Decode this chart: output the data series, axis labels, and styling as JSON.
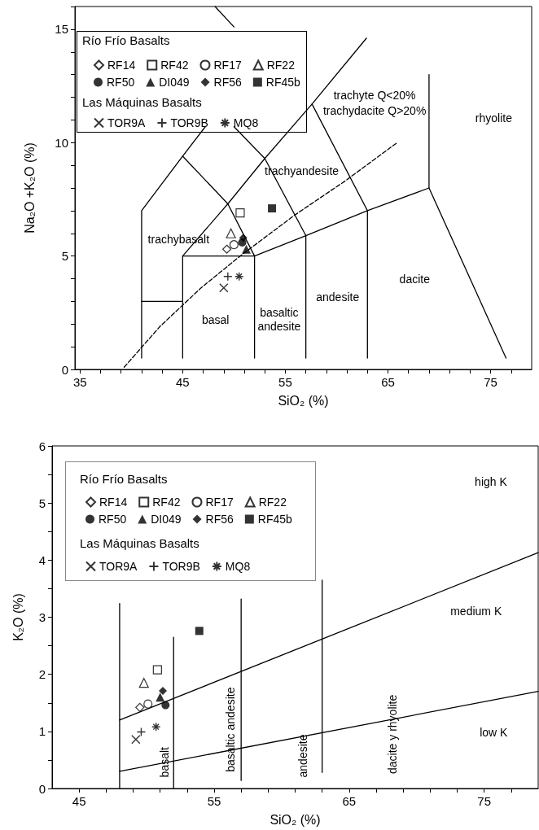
{
  "chart_data": [
    {
      "type": "scatter",
      "xlabel": "SiO₂ (%)",
      "ylabel": "Na₂O +K₂O (%)",
      "xlim": [
        34.5,
        79
      ],
      "ylim": [
        0,
        16
      ],
      "xticks": [
        35,
        {
          "value": 37,
          "label": null
        },
        {
          "value": 39,
          "label": null
        },
        {
          "value": 41,
          "label": null
        },
        {
          "value": 43,
          "label": null
        },
        45,
        {
          "value": 47,
          "label": null
        },
        {
          "value": 49,
          "label": null
        },
        {
          "value": 51,
          "label": null
        },
        {
          "value": 53,
          "label": null
        },
        55,
        {
          "value": 57,
          "label": null
        },
        {
          "value": 59,
          "label": null
        },
        {
          "value": 61,
          "label": null
        },
        {
          "value": 63,
          "label": null
        },
        65,
        {
          "value": 67,
          "label": null
        },
        {
          "value": 69,
          "label": null
        },
        {
          "value": 71,
          "label": null
        },
        {
          "value": 73,
          "label": null
        },
        75,
        {
          "value": 77,
          "label": null
        }
      ],
      "yticks": [
        0,
        {
          "value": 1,
          "label": null
        },
        {
          "value": 2,
          "label": null
        },
        {
          "value": 3,
          "label": null
        },
        {
          "value": 4,
          "label": null
        },
        5,
        {
          "value": 6,
          "label": null
        },
        {
          "value": 7,
          "label": null
        },
        {
          "value": 8,
          "label": null
        },
        {
          "value": 9,
          "label": null
        },
        10,
        {
          "value": 11,
          "label": null
        },
        {
          "value": 12,
          "label": null
        },
        {
          "value": 13,
          "label": null
        },
        {
          "value": 14,
          "label": null
        },
        15,
        {
          "value": 16,
          "label": null
        }
      ],
      "grid": false,
      "legend": "top left",
      "legend_title": [
        "Río Frío Basalts",
        "Las Máquinas Basalts"
      ],
      "series": [
        {
          "type": "line",
          "color": "#000000",
          "marker": "none",
          "x": [
            41,
            41,
            45,
            47.2
          ],
          "values": [
            0.5,
            7,
            9.4,
            10.7
          ]
        },
        {
          "type": "line",
          "color": "#000000",
          "marker": "none",
          "x": [
            41,
            45
          ],
          "values": [
            3,
            3
          ]
        },
        {
          "type": "line",
          "color": "#000000",
          "marker": "none",
          "x": [
            45,
            45,
            52,
            52
          ],
          "values": [
            0.5,
            5,
            5,
            0.5
          ]
        },
        {
          "type": "line",
          "color": "#000000",
          "marker": "none",
          "x": [
            45,
            49.4,
            52,
            57,
            63,
            69,
            76.5
          ],
          "values": [
            5,
            7.3,
            5,
            5.9,
            7,
            8,
            0.5
          ]
        },
        {
          "type": "line",
          "color": "#000000",
          "marker": "none",
          "x": [
            45,
            49.4,
            53,
            57,
            57
          ],
          "values": [
            9.4,
            7.3,
            9.3,
            5.9,
            0.5
          ]
        },
        {
          "type": "line",
          "color": "#000000",
          "marker": "none",
          "x": [
            63,
            63,
            57.6,
            62.9
          ],
          "values": [
            0.5,
            7,
            11.7,
            14.6
          ]
        },
        {
          "type": "line",
          "color": "#000000",
          "marker": "none",
          "x": [
            53,
            57.6
          ],
          "values": [
            9.3,
            11.7
          ]
        },
        {
          "type": "line",
          "color": "#000000",
          "marker": "none",
          "x": [
            50,
            53
          ],
          "values": [
            10.7,
            9.3
          ]
        },
        {
          "type": "line",
          "color": "#000000",
          "marker": "none",
          "x": [
            69,
            69
          ],
          "values": [
            8,
            13
          ]
        },
        {
          "type": "line",
          "color": "#000000",
          "marker": "none",
          "x": [
            48.15,
            50
          ],
          "values": [
            16,
            15.1
          ]
        },
        {
          "type": "line",
          "color": "#000000",
          "marker": "none",
          "line_style": "dashed",
          "x": [
            39.3,
            42.8,
            46.8,
            50.6,
            55.9,
            60.8,
            65.9
          ],
          "values": [
            0.1,
            1.9,
            3.6,
            5.0,
            6.8,
            8.3,
            10.0
          ]
        },
        {
          "name": "RF14",
          "color": "#000000",
          "marker": "diamond",
          "x": [
            49.3
          ],
          "values": [
            5.3
          ]
        },
        {
          "name": "RF42",
          "color": "#000000",
          "marker": "square",
          "x": [
            50.6
          ],
          "values": [
            6.9
          ]
        },
        {
          "name": "RF17",
          "color": "#000000",
          "marker": "circle",
          "x": [
            50.0
          ],
          "values": [
            5.5
          ]
        },
        {
          "name": "RF22",
          "color": "#000000",
          "marker": "triangle",
          "x": [
            49.7
          ],
          "values": [
            6.0
          ]
        },
        {
          "name": "RF50",
          "color": "#000000",
          "marker": "circle",
          "x": [
            50.8
          ],
          "values": [
            5.6
          ]
        },
        {
          "name": "DI049",
          "color": "#000000",
          "marker": "triangle",
          "x": [
            51.2
          ],
          "values": [
            5.3
          ]
        },
        {
          "name": "RF56",
          "color": "#000000",
          "marker": "diamond",
          "x": [
            50.9
          ],
          "values": [
            5.8
          ]
        },
        {
          "name": "RF45b",
          "color": "#000000",
          "marker": "square",
          "x": [
            53.7
          ],
          "values": [
            7.1
          ]
        },
        {
          "name": "TOR9A",
          "color": "#000000",
          "marker": "x",
          "x": [
            49.0
          ],
          "values": [
            3.6
          ]
        },
        {
          "name": "TOR9B",
          "color": "#000000",
          "marker": "plus",
          "x": [
            49.4
          ],
          "values": [
            4.1
          ]
        },
        {
          "name": "MQ8",
          "color": "#000000",
          "marker": "cross",
          "x": [
            50.5
          ],
          "values": [
            4.1
          ]
        }
      ],
      "annotations": [
        "trachybasalt",
        "basal",
        "basaltic\nandesite",
        "andesite",
        "dacite",
        "trachyandesite",
        "trachyte Q<20%",
        "trachydacite Q>20%",
        "rhyolite"
      ]
    },
    {
      "type": "scatter",
      "xlabel": "SiO₂ (%)",
      "ylabel": "K₂O (%)",
      "xlim": [
        43,
        79
      ],
      "ylim": [
        0,
        6
      ],
      "xticks": [
        45,
        {
          "value": 47,
          "label": null
        },
        {
          "value": 49,
          "label": null
        },
        {
          "value": 51,
          "label": null
        },
        {
          "value": 53,
          "label": null
        },
        55,
        {
          "value": 57,
          "label": null
        },
        {
          "value": 59,
          "label": null
        },
        {
          "value": 61,
          "label": null
        },
        {
          "value": 63,
          "label": null
        },
        65,
        {
          "value": 67,
          "label": null
        },
        {
          "value": 69,
          "label": null
        },
        {
          "value": 71,
          "label": null
        },
        {
          "value": 73,
          "label": null
        },
        75,
        {
          "value": 77,
          "label": null
        }
      ],
      "yticks": [
        0,
        {
          "value": 0.5,
          "label": null
        },
        1,
        {
          "value": 1.5,
          "label": null
        },
        2,
        {
          "value": 2.5,
          "label": null
        },
        3,
        {
          "value": 3.5,
          "label": null
        },
        4,
        {
          "value": 4.5,
          "label": null
        },
        5,
        {
          "value": 5.5,
          "label": null
        },
        6
      ],
      "grid": false,
      "legend": "top left",
      "legend_title": [
        "Río Frío Basalts",
        "Las Máquinas Basalts"
      ],
      "series": [
        {
          "type": "line",
          "color": "#000000",
          "marker": "none",
          "x": [
            48,
            48
          ],
          "values": [
            0,
            3.24
          ]
        },
        {
          "type": "line",
          "color": "#000000",
          "marker": "none",
          "x": [
            52,
            52
          ],
          "values": [
            0,
            2.65
          ]
        },
        {
          "type": "line",
          "color": "#000000",
          "marker": "none",
          "x": [
            57,
            57
          ],
          "values": [
            0.14,
            3.32
          ]
        },
        {
          "type": "line",
          "color": "#000000",
          "marker": "none",
          "x": [
            63,
            63
          ],
          "values": [
            0.28,
            3.65
          ]
        },
        {
          "type": "line",
          "color": "#000000",
          "marker": "none",
          "x": [
            48,
            79
          ],
          "values": [
            1.2,
            4.13
          ]
        },
        {
          "type": "line",
          "color": "#000000",
          "marker": "none",
          "x": [
            48,
            79
          ],
          "values": [
            0.3,
            1.7
          ]
        },
        {
          "name": "RF14",
          "color": "#000000",
          "marker": "diamond",
          "x": [
            49.5
          ],
          "values": [
            1.42
          ]
        },
        {
          "name": "RF42",
          "color": "#000000",
          "marker": "square",
          "x": [
            50.8
          ],
          "values": [
            2.08
          ]
        },
        {
          "name": "RF17",
          "color": "#000000",
          "marker": "circle",
          "x": [
            50.1
          ],
          "values": [
            1.48
          ]
        },
        {
          "name": "RF22",
          "color": "#000000",
          "marker": "triangle",
          "x": [
            49.8
          ],
          "values": [
            1.85
          ]
        },
        {
          "name": "RF50",
          "color": "#000000",
          "marker": "circle",
          "x": [
            51.4
          ],
          "values": [
            1.46
          ]
        },
        {
          "name": "DI049",
          "color": "#000000",
          "marker": "triangle",
          "x": [
            51.0
          ],
          "values": [
            1.6
          ]
        },
        {
          "name": "RF56",
          "color": "#000000",
          "marker": "diamond",
          "x": [
            51.2
          ],
          "values": [
            1.71
          ]
        },
        {
          "name": "RF45b",
          "color": "#000000",
          "marker": "square",
          "x": [
            53.9
          ],
          "values": [
            2.76
          ]
        },
        {
          "name": "TOR9A",
          "color": "#000000",
          "marker": "x",
          "x": [
            49.2
          ],
          "values": [
            0.86
          ]
        },
        {
          "name": "TOR9B",
          "color": "#000000",
          "marker": "plus",
          "x": [
            49.6
          ],
          "values": [
            0.99
          ]
        },
        {
          "name": "MQ8",
          "color": "#000000",
          "marker": "cross",
          "x": [
            50.7
          ],
          "values": [
            1.08
          ]
        }
      ],
      "annotations": [
        "high K",
        "medium K",
        "low K",
        "basalt",
        "basaltic andesite",
        "andesite",
        "dacite y rhyolite"
      ]
    }
  ]
}
